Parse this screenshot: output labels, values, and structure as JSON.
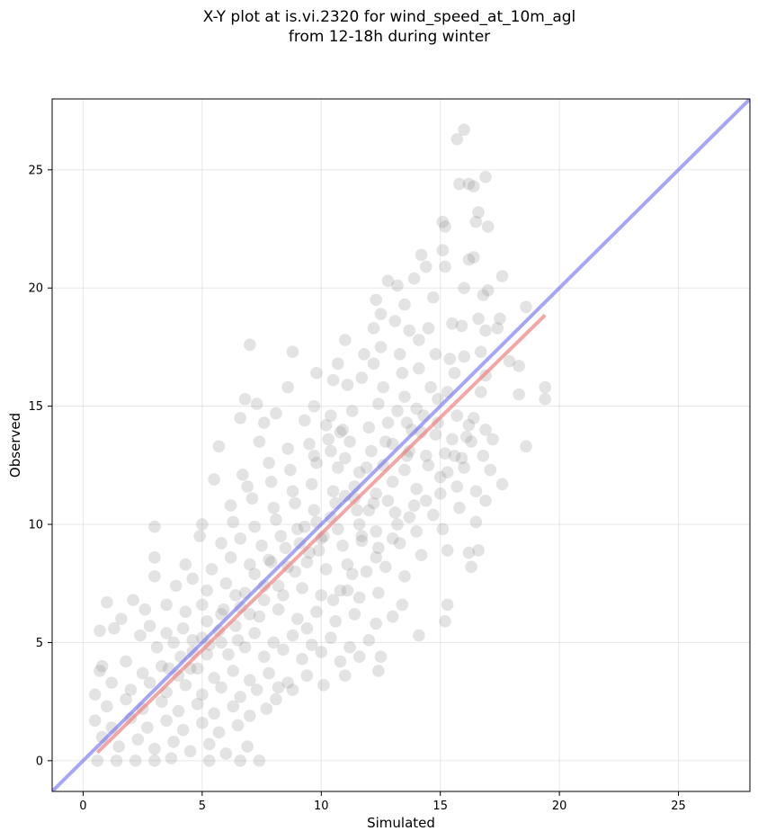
{
  "chart_data": {
    "type": "scatter",
    "title_line1": "X-Y plot at is.vi.2320 for wind_speed_at_10m_agl",
    "title_line2": "from 12-18h during winter",
    "xlabel": "Simulated",
    "ylabel": "Observed",
    "xlim": [
      -1.3,
      28
    ],
    "ylim": [
      -1.3,
      28
    ],
    "xticks": [
      0,
      5,
      10,
      15,
      20,
      25
    ],
    "yticks": [
      0,
      5,
      10,
      15,
      20,
      25
    ],
    "grid": true,
    "colors": {
      "points": "#808080",
      "one_to_one": "#7777ee",
      "fit": "#ee8080"
    },
    "one_to_one_line": {
      "x": [
        -1.3,
        28
      ],
      "y": [
        -1.3,
        28
      ]
    },
    "fit_line": {
      "x": [
        0.6,
        19.4
      ],
      "y": [
        0.35,
        18.85
      ]
    },
    "points": [
      [
        16.0,
        26.7
      ],
      [
        15.7,
        26.3
      ],
      [
        15.8,
        24.4
      ],
      [
        16.2,
        24.4
      ],
      [
        16.4,
        24.3
      ],
      [
        16.9,
        24.7
      ],
      [
        16.6,
        23.2
      ],
      [
        17.0,
        22.6
      ],
      [
        16.5,
        22.8
      ],
      [
        15.1,
        22.8
      ],
      [
        15.2,
        22.6
      ],
      [
        15.1,
        21.6
      ],
      [
        16.4,
        21.3
      ],
      [
        16.2,
        21.2
      ],
      [
        14.2,
        21.4
      ],
      [
        14.4,
        20.9
      ],
      [
        15.2,
        20.9
      ],
      [
        12.8,
        20.3
      ],
      [
        13.2,
        20.1
      ],
      [
        13.9,
        20.4
      ],
      [
        17.6,
        20.5
      ],
      [
        16.0,
        20.0
      ],
      [
        17.0,
        19.9
      ],
      [
        16.8,
        19.7
      ],
      [
        14.7,
        19.6
      ],
      [
        12.3,
        19.5
      ],
      [
        13.5,
        19.3
      ],
      [
        18.6,
        19.2
      ],
      [
        12.5,
        18.9
      ],
      [
        13.1,
        18.6
      ],
      [
        15.5,
        18.5
      ],
      [
        16.6,
        18.7
      ],
      [
        17.5,
        18.7
      ],
      [
        14.5,
        18.3
      ],
      [
        16.9,
        18.2
      ],
      [
        17.4,
        18.3
      ],
      [
        15.9,
        18.4
      ],
      [
        12.2,
        18.3
      ],
      [
        13.7,
        18.2
      ],
      [
        14.1,
        17.8
      ],
      [
        7.0,
        17.6
      ],
      [
        11.0,
        17.8
      ],
      [
        8.8,
        17.3
      ],
      [
        11.8,
        17.2
      ],
      [
        12.5,
        17.5
      ],
      [
        13.3,
        17.2
      ],
      [
        14.8,
        17.2
      ],
      [
        15.4,
        17.0
      ],
      [
        16.0,
        17.1
      ],
      [
        16.7,
        17.3
      ],
      [
        10.7,
        16.8
      ],
      [
        12.2,
        16.8
      ],
      [
        13.4,
        16.4
      ],
      [
        14.1,
        16.6
      ],
      [
        15.6,
        16.4
      ],
      [
        16.9,
        16.3
      ],
      [
        17.9,
        16.9
      ],
      [
        18.3,
        16.7
      ],
      [
        9.8,
        16.4
      ],
      [
        10.5,
        16.1
      ],
      [
        11.1,
        15.9
      ],
      [
        11.7,
        16.2
      ],
      [
        12.6,
        15.8
      ],
      [
        13.5,
        15.4
      ],
      [
        14.6,
        15.8
      ],
      [
        15.3,
        15.6
      ],
      [
        16.7,
        15.6
      ],
      [
        18.3,
        15.5
      ],
      [
        19.4,
        15.8
      ],
      [
        19.4,
        15.3
      ],
      [
        6.8,
        15.3
      ],
      [
        7.3,
        15.1
      ],
      [
        8.6,
        15.8
      ],
      [
        9.7,
        15.0
      ],
      [
        10.4,
        14.6
      ],
      [
        11.3,
        14.8
      ],
      [
        12.4,
        15.1
      ],
      [
        13.2,
        14.8
      ],
      [
        14.0,
        14.9
      ],
      [
        15.7,
        14.6
      ],
      [
        16.2,
        14.2
      ],
      [
        16.9,
        14.0
      ],
      [
        6.6,
        14.5
      ],
      [
        7.6,
        14.3
      ],
      [
        8.1,
        14.7
      ],
      [
        9.3,
        14.4
      ],
      [
        10.2,
        14.2
      ],
      [
        10.9,
        14.0
      ],
      [
        12.0,
        14.1
      ],
      [
        12.8,
        14.3
      ],
      [
        13.8,
        14.0
      ],
      [
        14.8,
        13.8
      ],
      [
        15.5,
        13.6
      ],
      [
        16.3,
        13.5
      ],
      [
        17.2,
        13.6
      ],
      [
        7.4,
        13.5
      ],
      [
        8.6,
        13.2
      ],
      [
        9.5,
        13.4
      ],
      [
        10.4,
        13.1
      ],
      [
        11.2,
        13.5
      ],
      [
        12.1,
        13.1
      ],
      [
        13.0,
        13.4
      ],
      [
        13.7,
        13.1
      ],
      [
        14.4,
        12.9
      ],
      [
        15.2,
        13.0
      ],
      [
        15.9,
        12.8
      ],
      [
        16.8,
        12.9
      ],
      [
        18.6,
        13.3
      ],
      [
        5.7,
        13.3
      ],
      [
        6.7,
        12.1
      ],
      [
        7.8,
        12.6
      ],
      [
        8.7,
        12.3
      ],
      [
        9.8,
        12.6
      ],
      [
        10.7,
        12.4
      ],
      [
        11.6,
        12.2
      ],
      [
        12.6,
        12.5
      ],
      [
        13.5,
        12.3
      ],
      [
        14.5,
        12.5
      ],
      [
        15.3,
        12.2
      ],
      [
        16.0,
        12.4
      ],
      [
        17.1,
        12.3
      ],
      [
        17.6,
        11.7
      ],
      [
        5.5,
        11.9
      ],
      [
        6.9,
        11.6
      ],
      [
        7.9,
        11.8
      ],
      [
        8.8,
        11.4
      ],
      [
        9.6,
        11.7
      ],
      [
        10.5,
        11.4
      ],
      [
        11.4,
        11.6
      ],
      [
        12.3,
        11.3
      ],
      [
        13.0,
        11.8
      ],
      [
        14.0,
        11.5
      ],
      [
        15.0,
        11.3
      ],
      [
        15.7,
        11.6
      ],
      [
        16.5,
        11.4
      ],
      [
        6.2,
        10.8
      ],
      [
        7.1,
        11.1
      ],
      [
        8.0,
        10.7
      ],
      [
        8.9,
        10.9
      ],
      [
        9.7,
        10.6
      ],
      [
        10.6,
        10.9
      ],
      [
        11.5,
        10.6
      ],
      [
        12.2,
        10.9
      ],
      [
        13.1,
        10.5
      ],
      [
        13.9,
        10.8
      ],
      [
        14.7,
        10.4
      ],
      [
        15.8,
        10.7
      ],
      [
        16.9,
        11.0
      ],
      [
        3.0,
        9.9
      ],
      [
        5.0,
        10.0
      ],
      [
        6.3,
        10.1
      ],
      [
        7.2,
        9.9
      ],
      [
        8.1,
        10.2
      ],
      [
        9.0,
        9.8
      ],
      [
        9.8,
        10.1
      ],
      [
        10.7,
        9.8
      ],
      [
        11.6,
        10.0
      ],
      [
        12.3,
        9.7
      ],
      [
        13.2,
        10.0
      ],
      [
        14.0,
        9.7
      ],
      [
        15.1,
        9.8
      ],
      [
        16.5,
        10.1
      ],
      [
        4.9,
        9.5
      ],
      [
        5.8,
        9.2
      ],
      [
        6.6,
        9.4
      ],
      [
        7.5,
        9.1
      ],
      [
        8.3,
        9.5
      ],
      [
        9.1,
        9.2
      ],
      [
        10.0,
        9.4
      ],
      [
        10.9,
        9.1
      ],
      [
        11.7,
        9.3
      ],
      [
        12.4,
        9.0
      ],
      [
        13.3,
        9.2
      ],
      [
        14.2,
        8.7
      ],
      [
        15.3,
        8.9
      ],
      [
        16.2,
        8.8
      ],
      [
        16.6,
        8.9
      ],
      [
        16.3,
        8.2
      ],
      [
        3.0,
        8.6
      ],
      [
        4.3,
        8.3
      ],
      [
        5.4,
        8.1
      ],
      [
        6.2,
        8.6
      ],
      [
        7.0,
        8.3
      ],
      [
        7.8,
        8.5
      ],
      [
        8.6,
        8.2
      ],
      [
        9.4,
        8.4
      ],
      [
        10.2,
        8.1
      ],
      [
        11.1,
        8.3
      ],
      [
        11.9,
        8.0
      ],
      [
        12.7,
        8.2
      ],
      [
        13.5,
        7.8
      ],
      [
        3.0,
        7.8
      ],
      [
        3.9,
        7.4
      ],
      [
        4.6,
        7.7
      ],
      [
        5.2,
        7.2
      ],
      [
        6.0,
        7.5
      ],
      [
        6.8,
        7.1
      ],
      [
        7.6,
        7.4
      ],
      [
        8.4,
        7.0
      ],
      [
        9.2,
        7.3
      ],
      [
        10.0,
        7.0
      ],
      [
        10.8,
        7.2
      ],
      [
        11.6,
        6.9
      ],
      [
        12.4,
        7.1
      ],
      [
        13.4,
        6.6
      ],
      [
        15.3,
        6.6
      ],
      [
        1.0,
        6.7
      ],
      [
        2.1,
        6.8
      ],
      [
        2.6,
        6.4
      ],
      [
        3.5,
        6.6
      ],
      [
        4.3,
        6.3
      ],
      [
        5.0,
        6.6
      ],
      [
        5.8,
        6.2
      ],
      [
        6.6,
        6.5
      ],
      [
        7.4,
        6.1
      ],
      [
        8.2,
        6.4
      ],
      [
        9.0,
        6.0
      ],
      [
        9.8,
        6.3
      ],
      [
        10.6,
        5.9
      ],
      [
        11.4,
        6.2
      ],
      [
        12.3,
        5.8
      ],
      [
        13.0,
        6.1
      ],
      [
        15.2,
        5.9
      ],
      [
        1.6,
        6.0
      ],
      [
        2.8,
        5.7
      ],
      [
        3.5,
        5.4
      ],
      [
        4.2,
        5.6
      ],
      [
        5.0,
        5.2
      ],
      [
        5.7,
        5.5
      ],
      [
        6.5,
        5.1
      ],
      [
        7.2,
        5.4
      ],
      [
        8.0,
        5.0
      ],
      [
        8.8,
        5.3
      ],
      [
        9.6,
        4.9
      ],
      [
        10.4,
        5.2
      ],
      [
        11.2,
        4.8
      ],
      [
        12.0,
        5.1
      ],
      [
        12.5,
        4.4
      ],
      [
        14.1,
        5.3
      ],
      [
        0.7,
        5.5
      ],
      [
        1.3,
        5.6
      ],
      [
        2.4,
        5.3
      ],
      [
        3.1,
        4.8
      ],
      [
        3.8,
        5.0
      ],
      [
        4.6,
        4.6
      ],
      [
        5.3,
        4.9
      ],
      [
        6.1,
        4.5
      ],
      [
        6.8,
        4.8
      ],
      [
        7.6,
        4.4
      ],
      [
        8.4,
        4.7
      ],
      [
        9.2,
        4.3
      ],
      [
        10.0,
        4.6
      ],
      [
        10.8,
        4.2
      ],
      [
        11.6,
        4.4
      ],
      [
        12.4,
        3.8
      ],
      [
        0.8,
        4.0
      ],
      [
        1.8,
        4.2
      ],
      [
        2.5,
        3.7
      ],
      [
        3.3,
        4.0
      ],
      [
        4.0,
        3.6
      ],
      [
        4.8,
        3.9
      ],
      [
        5.5,
        3.5
      ],
      [
        6.3,
        3.8
      ],
      [
        7.0,
        3.4
      ],
      [
        7.8,
        3.7
      ],
      [
        8.6,
        3.3
      ],
      [
        9.4,
        3.6
      ],
      [
        10.1,
        3.2
      ],
      [
        11.0,
        3.6
      ],
      [
        0.7,
        3.8
      ],
      [
        1.2,
        3.3
      ],
      [
        2.0,
        3.0
      ],
      [
        2.8,
        3.3
      ],
      [
        3.5,
        2.9
      ],
      [
        4.3,
        3.2
      ],
      [
        5.0,
        2.8
      ],
      [
        5.8,
        3.1
      ],
      [
        6.6,
        2.7
      ],
      [
        7.3,
        3.0
      ],
      [
        8.1,
        2.6
      ],
      [
        8.8,
        3.0
      ],
      [
        0.5,
        2.8
      ],
      [
        1.0,
        2.3
      ],
      [
        1.8,
        2.6
      ],
      [
        2.5,
        2.2
      ],
      [
        3.3,
        2.5
      ],
      [
        4.0,
        2.1
      ],
      [
        4.8,
        2.4
      ],
      [
        5.5,
        2.0
      ],
      [
        6.3,
        2.3
      ],
      [
        7.0,
        1.9
      ],
      [
        7.7,
        2.2
      ],
      [
        0.5,
        1.7
      ],
      [
        1.2,
        1.4
      ],
      [
        2.0,
        1.8
      ],
      [
        2.7,
        1.4
      ],
      [
        3.5,
        1.7
      ],
      [
        4.2,
        1.3
      ],
      [
        5.0,
        1.6
      ],
      [
        5.7,
        1.2
      ],
      [
        6.5,
        1.5
      ],
      [
        0.8,
        1.0
      ],
      [
        1.5,
        0.6
      ],
      [
        2.3,
        0.9
      ],
      [
        3.0,
        0.5
      ],
      [
        3.8,
        0.8
      ],
      [
        4.5,
        0.4
      ],
      [
        5.3,
        0.7
      ],
      [
        6.0,
        0.3
      ],
      [
        6.9,
        0.6
      ],
      [
        0.6,
        0.0
      ],
      [
        1.4,
        0.0
      ],
      [
        2.2,
        0.0
      ],
      [
        3.0,
        0.0
      ],
      [
        3.7,
        0.1
      ],
      [
        5.3,
        0.0
      ],
      [
        6.6,
        0.0
      ],
      [
        7.4,
        0.0
      ],
      [
        8.2,
        3.1
      ],
      [
        9.4,
        5.6
      ],
      [
        10.5,
        6.8
      ],
      [
        11.3,
        7.9
      ],
      [
        9.9,
        8.9
      ],
      [
        10.4,
        10.3
      ],
      [
        11.0,
        11.2
      ],
      [
        11.9,
        12.4
      ],
      [
        12.7,
        13.5
      ],
      [
        13.6,
        14.3
      ],
      [
        14.3,
        14.6
      ],
      [
        14.9,
        15.3
      ],
      [
        9.3,
        9.9
      ],
      [
        8.5,
        9.0
      ],
      [
        7.9,
        8.4
      ],
      [
        7.2,
        7.9
      ],
      [
        6.4,
        7.0
      ],
      [
        5.9,
        6.4
      ],
      [
        5.2,
        5.9
      ],
      [
        4.6,
        5.1
      ],
      [
        4.1,
        4.4
      ],
      [
        3.6,
        3.9
      ],
      [
        9.7,
        12.9
      ],
      [
        10.3,
        13.6
      ],
      [
        11.0,
        12.8
      ],
      [
        10.8,
        13.9
      ],
      [
        11.4,
        11.1
      ],
      [
        12.0,
        10.6
      ],
      [
        12.8,
        11.0
      ],
      [
        13.6,
        12.9
      ],
      [
        14.2,
        13.9
      ],
      [
        14.9,
        14.3
      ],
      [
        10.1,
        9.5
      ],
      [
        9.5,
        8.8
      ],
      [
        8.9,
        8.0
      ],
      [
        8.2,
        7.4
      ],
      [
        7.6,
        6.8
      ],
      [
        7.0,
        6.2
      ],
      [
        6.4,
        5.7
      ],
      [
        5.8,
        5.0
      ],
      [
        5.2,
        4.5
      ],
      [
        4.5,
        3.9
      ],
      [
        11.7,
        9.5
      ],
      [
        12.3,
        8.6
      ],
      [
        13.0,
        9.4
      ],
      [
        13.7,
        10.3
      ],
      [
        14.4,
        11.0
      ],
      [
        15.0,
        12.0
      ],
      [
        15.6,
        12.9
      ],
      [
        16.1,
        13.7
      ],
      [
        16.4,
        14.5
      ],
      [
        11.1,
        7.2
      ]
    ]
  }
}
